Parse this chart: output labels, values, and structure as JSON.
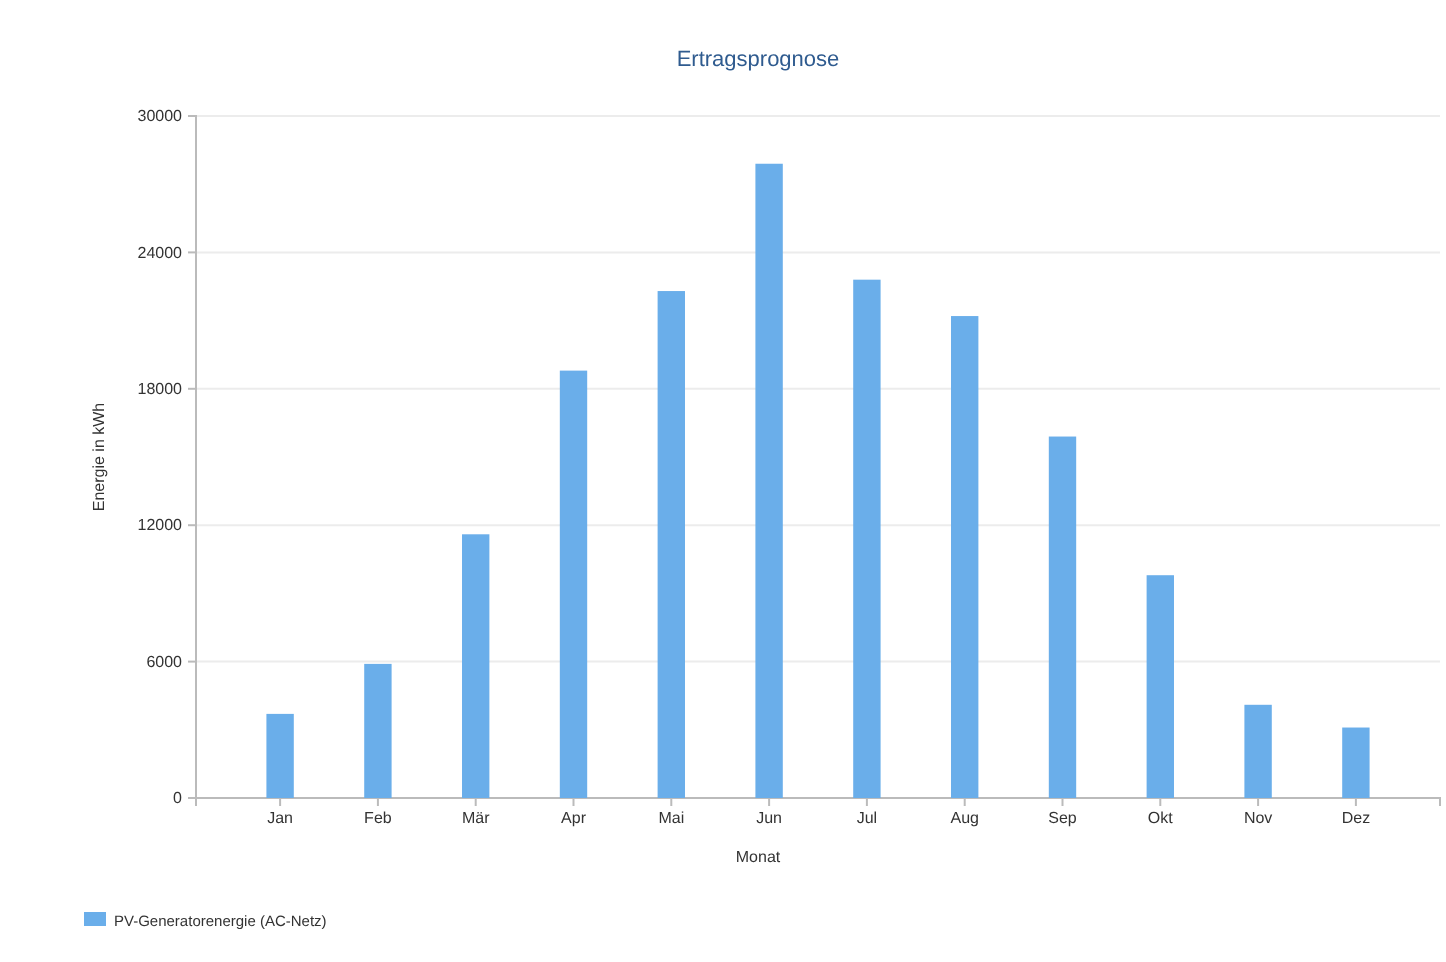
{
  "chart_data": {
    "type": "bar",
    "title": "Ertragsprognose",
    "xlabel": "Monat",
    "ylabel": "Energie in kWh",
    "categories": [
      "Jan",
      "Feb",
      "Mär",
      "Apr",
      "Mai",
      "Jun",
      "Jul",
      "Aug",
      "Sep",
      "Okt",
      "Nov",
      "Dez"
    ],
    "series": [
      {
        "name": "PV-Generatorenergie (AC-Netz)",
        "color": "#6aaeea",
        "values": [
          3700,
          5900,
          11600,
          18800,
          22300,
          27900,
          22800,
          21200,
          15900,
          9800,
          4100,
          3100
        ]
      }
    ],
    "ylim": [
      0,
      30000
    ],
    "yticks": [
      0,
      6000,
      12000,
      18000,
      24000,
      30000
    ],
    "grid": "y",
    "legend": "bottom left"
  }
}
